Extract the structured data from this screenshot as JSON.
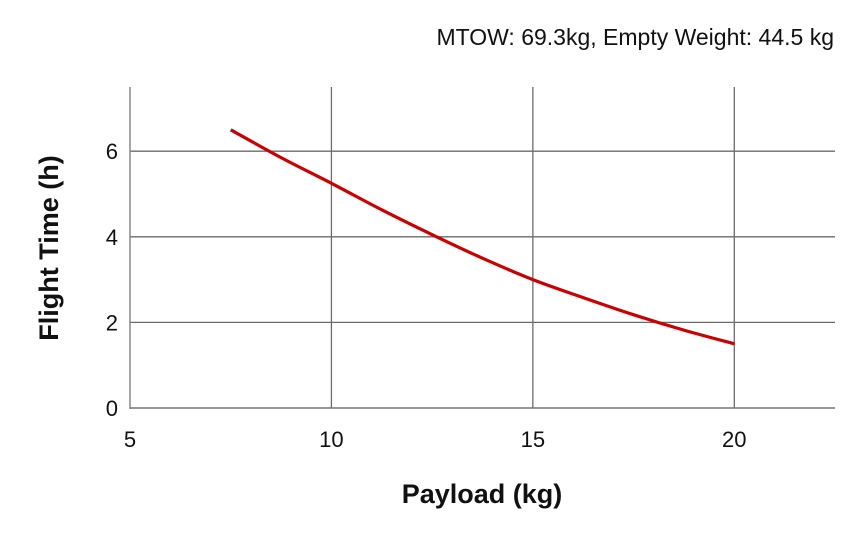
{
  "chart_data": {
    "type": "line",
    "title": "",
    "subtitle": "MTOW: 69.3kg, Empty Weight: 44.5 kg",
    "xlabel": "Payload (kg)",
    "ylabel": "Flight Time (h)",
    "xlim": [
      5,
      22.5
    ],
    "ylim": [
      0,
      7.5
    ],
    "xticks": [
      5,
      10,
      15,
      20
    ],
    "yticks": [
      0,
      2,
      4,
      6
    ],
    "grid": true,
    "legend": null,
    "series": [
      {
        "name": "Flight Time",
        "color": "#cc0000",
        "x": [
          7.5,
          8.75,
          10,
          11.25,
          12.5,
          13.75,
          15,
          16.25,
          17.5,
          18.75,
          20
        ],
        "y": [
          6.5,
          5.85,
          5.25,
          4.63,
          4.05,
          3.5,
          3.0,
          2.58,
          2.18,
          1.82,
          1.5
        ]
      }
    ]
  }
}
